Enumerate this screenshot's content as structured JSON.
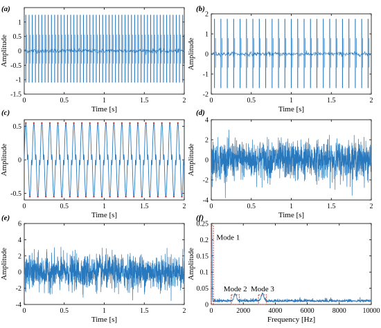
{
  "chart_data": [
    {
      "panel_label": "(a)",
      "type": "line",
      "signal": "impulse",
      "xlabel": "Time [s]",
      "ylabel": "Amplitude",
      "xlim": [
        0,
        2
      ],
      "ylim": [
        -1.5,
        1.5
      ],
      "xticks": [
        "0",
        "0.5",
        "1",
        "1.5",
        "2"
      ],
      "yticks": [
        "-1.5",
        "-1",
        "-0.5",
        "0",
        "0.5",
        "1"
      ],
      "impulse_count": 50,
      "peak_max": 1.25,
      "peak_min": -1.1,
      "color": "#2878bd"
    },
    {
      "panel_label": "(b)",
      "type": "line",
      "signal": "impulse",
      "xlabel": "Time [s]",
      "ylabel": "Amplitude",
      "xlim": [
        0,
        2
      ],
      "ylim": [
        -2,
        2
      ],
      "xticks": [
        "0",
        "0.5",
        "1",
        "1.5",
        "2"
      ],
      "yticks": [
        "-2",
        "-1",
        "0",
        "1",
        "2"
      ],
      "impulse_count": 25,
      "peak_max": 1.75,
      "peak_min": -1.7,
      "color": "#2878bd"
    },
    {
      "panel_label": "(c)",
      "type": "line",
      "signal": "periodic",
      "xlabel": "Time [s]",
      "ylabel": "Amplitude",
      "xlim": [
        0,
        2
      ],
      "ylim": [
        -0.6,
        0.6
      ],
      "xticks": [
        "0",
        "0.5",
        "1",
        "1.5",
        "2"
      ],
      "yticks": [
        "-0.5",
        "0",
        "0.5"
      ],
      "cycles": 20,
      "peak": 0.55,
      "color": "#2878bd",
      "overlay_color": "#c0392b"
    },
    {
      "panel_label": "(d)",
      "type": "line",
      "signal": "noise",
      "xlabel": "Time [s]",
      "ylabel": "Amplitude",
      "xlim": [
        0,
        2
      ],
      "ylim": [
        -4,
        4
      ],
      "xticks": [
        "0",
        "0.5",
        "1",
        "1.5",
        "2"
      ],
      "yticks": [
        "-4",
        "-2",
        "0",
        "2",
        "4"
      ],
      "noise_std": 0.95,
      "color": "#2878bd"
    },
    {
      "panel_label": "(e)",
      "type": "line",
      "signal": "noise",
      "xlabel": "Time [s]",
      "ylabel": "Amplitude",
      "xlim": [
        0,
        2
      ],
      "ylim": [
        -4,
        6
      ],
      "xticks": [
        "0",
        "0.5",
        "1",
        "1.5",
        "2"
      ],
      "yticks": [
        "-4",
        "-2",
        "0",
        "2",
        "4",
        "6"
      ],
      "noise_std": 1.05,
      "color": "#2878bd"
    },
    {
      "panel_label": "(f)",
      "type": "line",
      "signal": "spectrum",
      "xlabel": "Frequency [Hz]",
      "ylabel": "Amplitude",
      "xlim": [
        0,
        10000
      ],
      "ylim": [
        0,
        0.25
      ],
      "xticks": [
        "0",
        "2000",
        "4000",
        "6000",
        "8000",
        "10000"
      ],
      "yticks": [
        "0",
        "0.05",
        "0.1",
        "0.15",
        "0.2",
        "0.25"
      ],
      "floor_level": 0.008,
      "peaks": [
        {
          "frequency": 25,
          "amplitude": 0.24
        },
        {
          "frequency": 1500,
          "amplitude": 0.022
        },
        {
          "frequency": 3200,
          "amplitude": 0.022
        }
      ],
      "annotations": [
        {
          "text": "Mode 1",
          "x": 25,
          "x_min": 0,
          "x_max": 60,
          "y_max": 0.245
        },
        {
          "text": "Mode 2",
          "x": 1500,
          "x_min": 1250,
          "x_max": 1750,
          "y_max": 0.03
        },
        {
          "text": "Mode 3",
          "x": 3200,
          "x_min": 2950,
          "x_max": 3450,
          "y_max": 0.03
        }
      ],
      "color": "#2878bd",
      "annot_color": "#c0392b"
    }
  ]
}
